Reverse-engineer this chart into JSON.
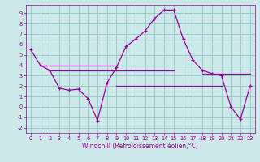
{
  "xlabel": "Windchill (Refroidissement éolien,°C)",
  "bg_color": "#cce8e8",
  "grid_color": "#99cccc",
  "line_color": "#990099",
  "xlim": [
    -0.5,
    23.5
  ],
  "ylim": [
    -2.5,
    9.8
  ],
  "yticks": [
    -2,
    -1,
    0,
    1,
    2,
    3,
    4,
    5,
    6,
    7,
    8,
    9
  ],
  "xticks": [
    0,
    1,
    2,
    3,
    4,
    5,
    6,
    7,
    8,
    9,
    10,
    11,
    12,
    13,
    14,
    15,
    16,
    17,
    18,
    19,
    20,
    21,
    22,
    23
  ],
  "main_x": [
    0,
    1,
    2,
    3,
    4,
    5,
    6,
    7,
    8,
    9,
    10,
    11,
    12,
    13,
    14,
    15,
    16,
    17,
    18,
    19,
    20,
    21,
    22,
    23
  ],
  "main_y": [
    5.5,
    4.0,
    3.5,
    1.8,
    1.6,
    1.7,
    0.8,
    -1.3,
    2.3,
    3.8,
    5.8,
    6.5,
    7.3,
    8.5,
    9.3,
    9.3,
    6.5,
    4.5,
    3.5,
    3.2,
    3.0,
    0.0,
    -1.2,
    2.0
  ],
  "flat_lines": [
    {
      "x": [
        1,
        9
      ],
      "y": [
        4.0,
        4.0
      ]
    },
    {
      "x": [
        2,
        15
      ],
      "y": [
        3.5,
        3.5
      ]
    },
    {
      "x": [
        9,
        20
      ],
      "y": [
        2.0,
        2.0
      ]
    },
    {
      "x": [
        18,
        23
      ],
      "y": [
        3.2,
        3.2
      ]
    }
  ],
  "xlabel_fontsize": 5.5,
  "tick_fontsize": 4.8
}
